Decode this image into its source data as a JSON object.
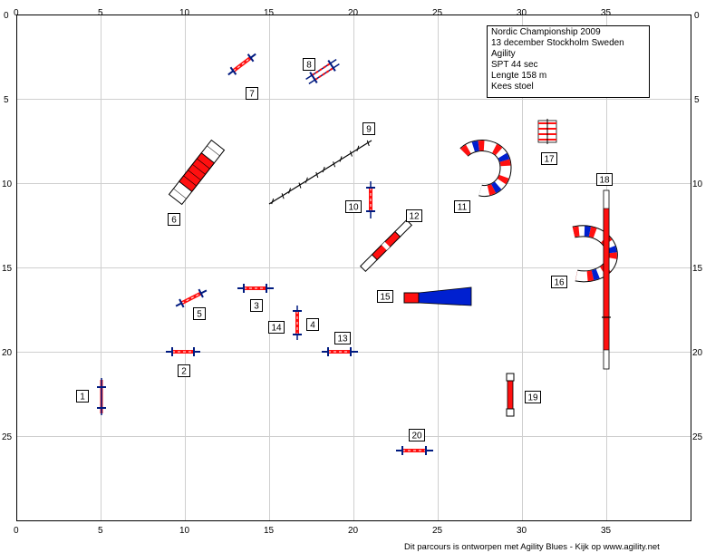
{
  "course": {
    "ticks_x": [
      "0",
      "5",
      "10",
      "15",
      "20",
      "25",
      "30",
      "35"
    ],
    "ticks_y": [
      "0",
      "5",
      "10",
      "15",
      "20",
      "25"
    ],
    "info": [
      "Nordic Championship 2009",
      "13 december Stockholm Sweden",
      "Agility",
      "SPT 44 sec",
      "Lengte 158 m",
      "Kees stoel"
    ],
    "obstacle_numbers": [
      "1",
      "2",
      "3",
      "4",
      "5",
      "6",
      "7",
      "8",
      "9",
      "10",
      "11",
      "12",
      "13",
      "14",
      "15",
      "16",
      "17",
      "18",
      "19",
      "20"
    ],
    "footer": "Dit parcours is ontworpen met Agility Blues - Kijk op www.agility.net"
  },
  "colors": {
    "grid": "#cfcfcf",
    "red": "#ff1010",
    "blue": "#0020d0",
    "dark_blue": "#001a80",
    "frame": "#000000"
  }
}
